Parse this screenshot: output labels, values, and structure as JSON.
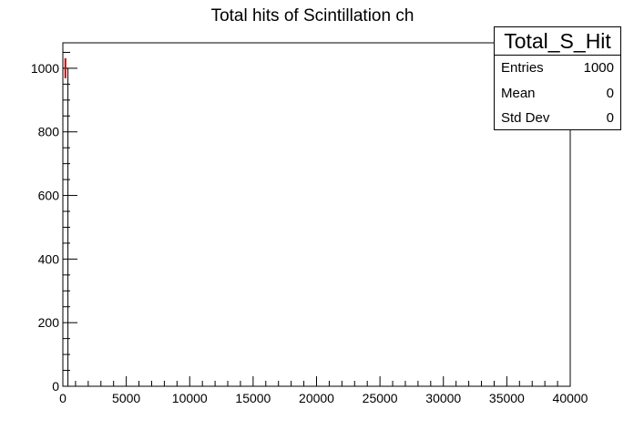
{
  "chart_data": {
    "type": "bar",
    "title": "Total hits of Scintillation ch",
    "xlabel": "",
    "ylabel": "",
    "xlim": [
      0,
      40000
    ],
    "ylim": [
      0,
      1080
    ],
    "x_ticks": [
      0,
      5000,
      10000,
      15000,
      20000,
      25000,
      30000,
      35000,
      40000
    ],
    "y_ticks": [
      0,
      200,
      400,
      600,
      800,
      1000
    ],
    "bins": [
      {
        "x_low": 0,
        "x_high": 400,
        "value": 1000,
        "error": 31.6
      }
    ],
    "grid": false,
    "colors": {
      "histogram": "#000000",
      "error_bar": "#cc0000"
    },
    "stats_box": {
      "name": "Total_S_Hit",
      "rows": [
        {
          "label": "Entries",
          "value": "1000"
        },
        {
          "label": "Mean",
          "value": "0"
        },
        {
          "label": "Std Dev",
          "value": "0"
        }
      ]
    }
  }
}
